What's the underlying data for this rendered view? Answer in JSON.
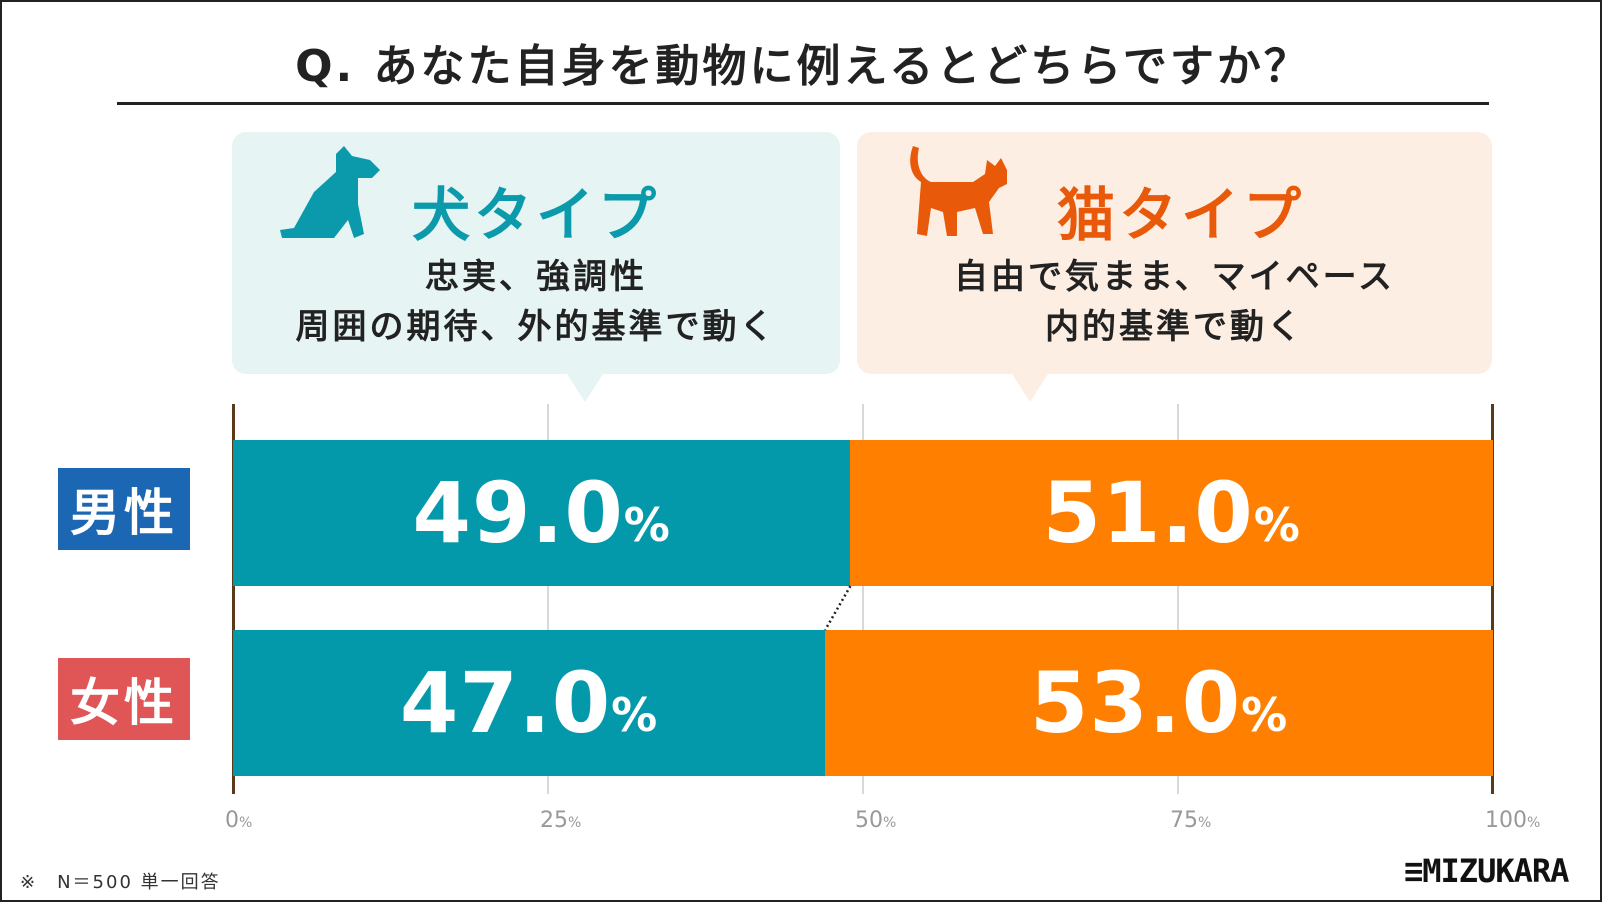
{
  "title": "Q. あなた自身を動物に例えるとどちらですか？",
  "types": [
    {
      "name": "犬タイプ",
      "icon": "dog-icon",
      "desc1": "忠実、強調性",
      "desc2": "周囲の期待、外的基準で動く",
      "color": "#0a9aab"
    },
    {
      "name": "猫タイプ",
      "icon": "cat-icon",
      "desc1": "自由で気まま、マイペース",
      "desc2": "内的基準で動く",
      "color": "#e85a0a"
    }
  ],
  "chart_data": {
    "type": "bar",
    "stacked": true,
    "orientation": "horizontal",
    "categories": [
      "男性",
      "女性"
    ],
    "category_colors": [
      "#1c67b3",
      "#e05656"
    ],
    "series": [
      {
        "name": "犬タイプ",
        "values": [
          49.0,
          47.0
        ],
        "color": "#0399ab"
      },
      {
        "name": "猫タイプ",
        "values": [
          51.0,
          53.0
        ],
        "color": "#ff7f00"
      }
    ],
    "xlim": [
      0,
      100
    ],
    "ticks": [
      "0",
      "25",
      "50",
      "75",
      "100"
    ],
    "tick_unit": "%",
    "value_unit": "%",
    "grid": true
  },
  "note": "※　N＝500 単一回答",
  "logo": "MIZUKARA"
}
